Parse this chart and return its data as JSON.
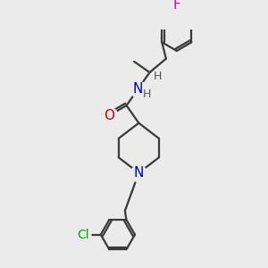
{
  "bg_color": "#ebebeb",
  "bond_color": "#3a3a3a",
  "bond_width": 1.6,
  "atom_colors": {
    "O": "#cc0000",
    "N": "#0000cc",
    "Cl": "#00aa00",
    "F": "#cc00cc",
    "H": "#555555",
    "C": "#3a3a3a"
  },
  "font_size": 10,
  "fig_size": [
    3.0,
    3.0
  ],
  "dpi": 100
}
